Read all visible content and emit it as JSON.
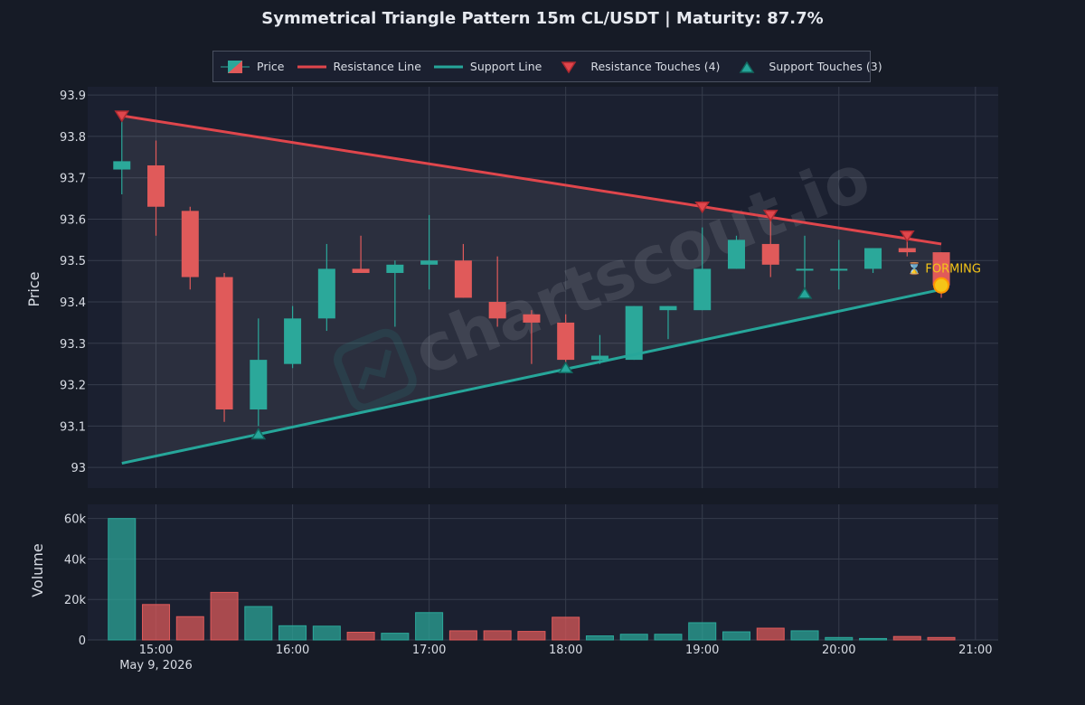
{
  "chart_data": {
    "type": "candlestick",
    "title": "Symmetrical Triangle Pattern 15m CL/USDT | Maturity: 87.7%",
    "watermark": "chartscout.io",
    "colors": {
      "background": "#161b26",
      "plot_bg": "#1b2030",
      "grid": "#363c4c",
      "up": "#2ba89a",
      "down": "#e05a5a",
      "resistance": "#e0464c",
      "support": "#26a69a",
      "forming": "#f5c518"
    },
    "legend": {
      "position": "top",
      "entries": [
        {
          "label": "Price",
          "kind": "candle"
        },
        {
          "label": "Resistance Line",
          "kind": "resistance-line"
        },
        {
          "label": "Support Line",
          "kind": "support-line"
        },
        {
          "label": "Resistance Touches (4)",
          "kind": "resistance-marker"
        },
        {
          "label": "Support Touches (3)",
          "kind": "support-marker"
        }
      ]
    },
    "price_panel": {
      "ylabel": "Price",
      "ylim": [
        92.95,
        93.92
      ],
      "yticks": [
        93,
        93.1,
        93.2,
        93.3,
        93.4,
        93.5,
        93.6,
        93.7,
        93.8,
        93.9
      ],
      "ytick_labels": [
        "93",
        "93.1",
        "93.2",
        "93.3",
        "93.4",
        "93.5",
        "93.6",
        "93.7",
        "93.8",
        "93.9"
      ],
      "grid": true
    },
    "volume_panel": {
      "ylabel": "Volume",
      "ylim": [
        0,
        67000
      ],
      "yticks": [
        0,
        20000,
        40000,
        60000
      ],
      "ytick_labels": [
        "0",
        "20k",
        "40k",
        "60k"
      ],
      "grid": true
    },
    "x_axis": {
      "range": [
        "14:30",
        "21:10"
      ],
      "ticks": [
        "15:00",
        "16:00",
        "17:00",
        "18:00",
        "19:00",
        "20:00",
        "21:00"
      ],
      "date_label": "May 9, 2026"
    },
    "candles": [
      {
        "t": "14:45",
        "o": 93.72,
        "h": 93.84,
        "l": 93.66,
        "c": 93.74,
        "v": 60000
      },
      {
        "t": "15:00",
        "o": 93.73,
        "h": 93.79,
        "l": 93.56,
        "c": 93.63,
        "v": 17500
      },
      {
        "t": "15:15",
        "o": 93.62,
        "h": 93.63,
        "l": 93.43,
        "c": 93.46,
        "v": 11500
      },
      {
        "t": "15:30",
        "o": 93.46,
        "h": 93.47,
        "l": 93.11,
        "c": 93.14,
        "v": 23500
      },
      {
        "t": "15:45",
        "o": 93.14,
        "h": 93.36,
        "l": 93.1,
        "c": 93.26,
        "v": 16500
      },
      {
        "t": "16:00",
        "o": 93.25,
        "h": 93.39,
        "l": 93.24,
        "c": 93.36,
        "v": 7000
      },
      {
        "t": "16:15",
        "o": 93.36,
        "h": 93.54,
        "l": 93.33,
        "c": 93.48,
        "v": 6800
      },
      {
        "t": "16:30",
        "o": 93.48,
        "h": 93.56,
        "l": 93.47,
        "c": 93.47,
        "v": 3800
      },
      {
        "t": "16:45",
        "o": 93.47,
        "h": 93.5,
        "l": 93.34,
        "c": 93.49,
        "v": 3300
      },
      {
        "t": "17:00",
        "o": 93.49,
        "h": 93.61,
        "l": 93.43,
        "c": 93.5,
        "v": 13500
      },
      {
        "t": "17:15",
        "o": 93.5,
        "h": 93.54,
        "l": 93.41,
        "c": 93.41,
        "v": 4500
      },
      {
        "t": "17:30",
        "o": 93.4,
        "h": 93.51,
        "l": 93.34,
        "c": 93.36,
        "v": 4500
      },
      {
        "t": "17:45",
        "o": 93.37,
        "h": 93.38,
        "l": 93.25,
        "c": 93.35,
        "v": 4200
      },
      {
        "t": "18:00",
        "o": 93.35,
        "h": 93.37,
        "l": 93.24,
        "c": 93.26,
        "v": 11200
      },
      {
        "t": "18:15",
        "o": 93.26,
        "h": 93.32,
        "l": 93.25,
        "c": 93.27,
        "v": 2000
      },
      {
        "t": "18:30",
        "o": 93.26,
        "h": 93.39,
        "l": 93.26,
        "c": 93.39,
        "v": 2800
      },
      {
        "t": "18:45",
        "o": 93.38,
        "h": 93.39,
        "l": 93.31,
        "c": 93.39,
        "v": 2800
      },
      {
        "t": "19:00",
        "o": 93.38,
        "h": 93.58,
        "l": 93.38,
        "c": 93.48,
        "v": 8500
      },
      {
        "t": "19:15",
        "o": 93.48,
        "h": 93.56,
        "l": 93.48,
        "c": 93.55,
        "v": 4000
      },
      {
        "t": "19:30",
        "o": 93.54,
        "h": 93.6,
        "l": 93.46,
        "c": 93.49,
        "v": 5800
      },
      {
        "t": "19:45",
        "o": 93.48,
        "h": 93.56,
        "l": 93.42,
        "c": 93.48,
        "v": 4500
      },
      {
        "t": "20:00",
        "o": 93.48,
        "h": 93.55,
        "l": 93.43,
        "c": 93.48,
        "v": 1200
      },
      {
        "t": "20:15",
        "o": 93.48,
        "h": 93.53,
        "l": 93.47,
        "c": 93.53,
        "v": 700
      },
      {
        "t": "20:30",
        "o": 93.53,
        "h": 93.55,
        "l": 93.51,
        "c": 93.52,
        "v": 1700
      },
      {
        "t": "20:45",
        "o": 93.52,
        "h": 93.52,
        "l": 93.41,
        "c": 93.44,
        "v": 1200
      }
    ],
    "resistance_line": {
      "start": {
        "t": "14:45",
        "price": 93.85
      },
      "end": {
        "t": "20:45",
        "price": 93.54
      }
    },
    "support_line": {
      "start": {
        "t": "14:45",
        "price": 93.01
      },
      "end": {
        "t": "20:45",
        "price": 93.43
      }
    },
    "resistance_touches": [
      {
        "t": "14:45",
        "price": 93.85
      },
      {
        "t": "19:00",
        "price": 93.63
      },
      {
        "t": "19:30",
        "price": 93.61
      },
      {
        "t": "20:30",
        "price": 93.56
      }
    ],
    "support_touches": [
      {
        "t": "15:45",
        "price": 93.08
      },
      {
        "t": "18:00",
        "price": 93.24
      },
      {
        "t": "19:45",
        "price": 93.42
      }
    ],
    "forming": {
      "t": "20:45",
      "price": 93.44,
      "label": "⌛ FORMING"
    }
  }
}
